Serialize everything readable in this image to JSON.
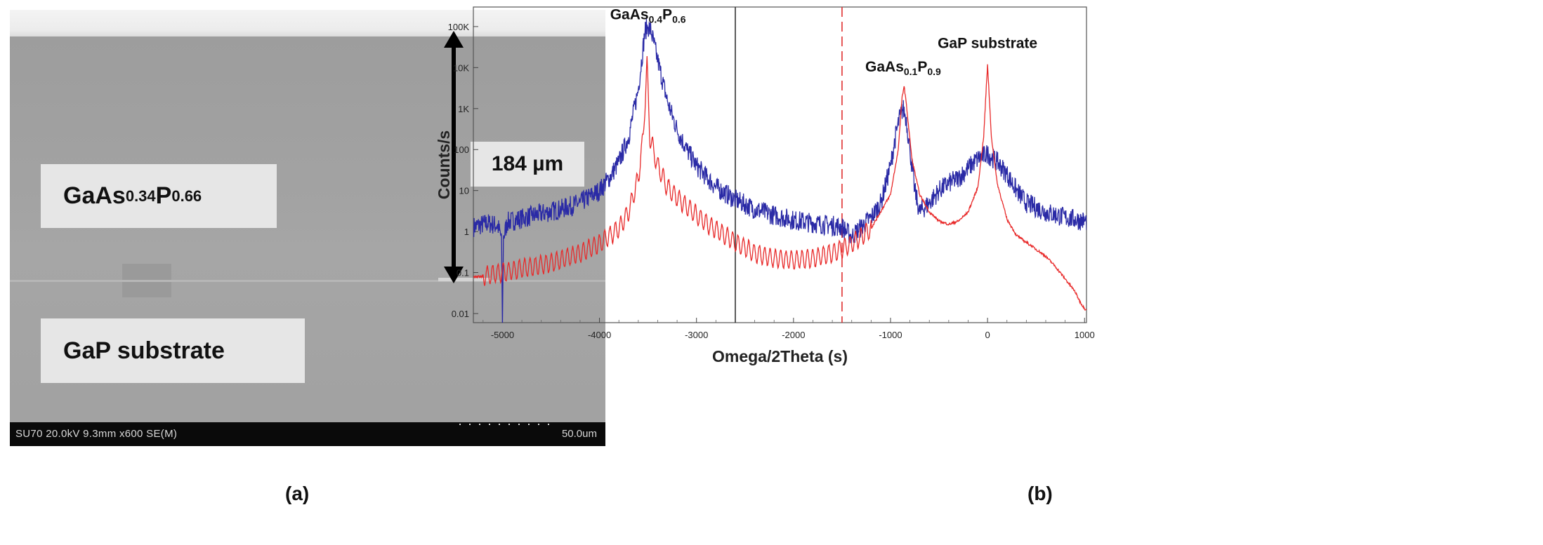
{
  "panel_a": {
    "layer_label": {
      "base": "GaAs",
      "sub1": "0.34",
      "mid": "P",
      "sub2": "0.66"
    },
    "substrate_label": "GaP substrate",
    "thickness_label": "184 µm",
    "sem_info": "SU70 20.0kV 9.3mm x600 SE(M)",
    "sem_scale": "50.0um",
    "caption": "(a)"
  },
  "panel_b": {
    "caption": "(b)"
  },
  "chart_data": {
    "type": "line",
    "xlabel": "Omega/2Theta (s)",
    "ylabel": "Counts/s",
    "xlim": [
      -5300,
      1020
    ],
    "ylim": [
      0.006,
      300000
    ],
    "y_scale": "log",
    "grid": false,
    "x_ticks": [
      -5000,
      -4000,
      -3000,
      -2000,
      -1000,
      0,
      1000
    ],
    "x_tick_labels": [
      "-5000",
      "-4000",
      "-3000",
      "-2000",
      "-1000",
      "0",
      "1000"
    ],
    "y_ticks": [
      0.01,
      0.1,
      1,
      10,
      100,
      1000,
      10000,
      100000
    ],
    "y_tick_labels": [
      "0.01",
      "0.1",
      "1",
      "10",
      "100",
      "1K",
      "10K",
      "100K"
    ],
    "vertical_lines": [
      {
        "x": -2600,
        "style": "solid",
        "color": "#333333"
      },
      {
        "x": -1500,
        "style": "dashed",
        "color": "#e03030"
      }
    ],
    "annotations": [
      {
        "x": -3500,
        "y": 150000,
        "base": "GaAs",
        "sub1": "0.4",
        "mid": "P",
        "sub2": "0.6"
      },
      {
        "x": -870,
        "y": 8000,
        "base": "GaAs",
        "sub1": "0.1",
        "mid": "P",
        "sub2": "0.9"
      },
      {
        "x": 0,
        "y": 30000,
        "text": "GaP substrate"
      }
    ],
    "series": [
      {
        "color": "#2a2aa6",
        "noise": 0.5,
        "points": [
          [
            -5300,
            1.3
          ],
          [
            -5150,
            1.6
          ],
          [
            -5050,
            1.4
          ],
          [
            -5010,
            0.7
          ],
          [
            -5000,
            0.005
          ],
          [
            -4990,
            0.7
          ],
          [
            -4950,
            1.7
          ],
          [
            -4700,
            2.4
          ],
          [
            -4400,
            3.5
          ],
          [
            -4200,
            5
          ],
          [
            -4000,
            10
          ],
          [
            -3900,
            20
          ],
          [
            -3800,
            50
          ],
          [
            -3700,
            200
          ],
          [
            -3600,
            3000
          ],
          [
            -3530,
            80000
          ],
          [
            -3500,
            100000
          ],
          [
            -3470,
            80000
          ],
          [
            -3400,
            15000
          ],
          [
            -3300,
            1500
          ],
          [
            -3200,
            300
          ],
          [
            -3100,
            100
          ],
          [
            -3000,
            40
          ],
          [
            -2800,
            12
          ],
          [
            -2600,
            6
          ],
          [
            -2400,
            3.5
          ],
          [
            -2200,
            2.5
          ],
          [
            -2000,
            1.9
          ],
          [
            -1700,
            1.5
          ],
          [
            -1500,
            1.3
          ],
          [
            -1400,
            0.75
          ],
          [
            -1300,
            1.3
          ],
          [
            -1200,
            2.2
          ],
          [
            -1100,
            5
          ],
          [
            -1000,
            40
          ],
          [
            -950,
            200
          ],
          [
            -900,
            700
          ],
          [
            -870,
            1000
          ],
          [
            -840,
            600
          ],
          [
            -800,
            100
          ],
          [
            -750,
            10
          ],
          [
            -700,
            3
          ],
          [
            -600,
            5
          ],
          [
            -500,
            10
          ],
          [
            -400,
            15
          ],
          [
            -300,
            20
          ],
          [
            -200,
            35
          ],
          [
            -100,
            60
          ],
          [
            0,
            80
          ],
          [
            100,
            50
          ],
          [
            200,
            25
          ],
          [
            300,
            10
          ],
          [
            400,
            5
          ],
          [
            600,
            3
          ],
          [
            800,
            2.2
          ],
          [
            1000,
            1.8
          ]
        ]
      },
      {
        "color": "#e82a2a",
        "noise": 0.06,
        "oscillation": {
          "period": 55,
          "amplitude": 0.22,
          "xmin": -5200,
          "xmax": -1200
        },
        "points": [
          [
            -5300,
            0.075
          ],
          [
            -5000,
            0.1
          ],
          [
            -4500,
            0.17
          ],
          [
            -4200,
            0.3
          ],
          [
            -4000,
            0.5
          ],
          [
            -3800,
            1.2
          ],
          [
            -3700,
            3
          ],
          [
            -3600,
            20
          ],
          [
            -3550,
            200
          ],
          [
            -3510,
            12000
          ],
          [
            -3480,
            200
          ],
          [
            -3400,
            40
          ],
          [
            -3300,
            12
          ],
          [
            -3100,
            4
          ],
          [
            -2900,
            1.6
          ],
          [
            -2700,
            0.8
          ],
          [
            -2600,
            0.55
          ],
          [
            -2400,
            0.3
          ],
          [
            -2200,
            0.22
          ],
          [
            -2000,
            0.2
          ],
          [
            -1800,
            0.22
          ],
          [
            -1600,
            0.3
          ],
          [
            -1400,
            0.5
          ],
          [
            -1200,
            1.2
          ],
          [
            -1000,
            8
          ],
          [
            -920,
            100
          ],
          [
            -880,
            2000
          ],
          [
            -860,
            3500
          ],
          [
            -840,
            1500
          ],
          [
            -780,
            60
          ],
          [
            -700,
            8
          ],
          [
            -600,
            3
          ],
          [
            -500,
            1.8
          ],
          [
            -400,
            1.5
          ],
          [
            -300,
            1.8
          ],
          [
            -200,
            3
          ],
          [
            -100,
            12
          ],
          [
            -40,
            200
          ],
          [
            0,
            12000
          ],
          [
            40,
            200
          ],
          [
            100,
            15
          ],
          [
            200,
            2
          ],
          [
            300,
            0.8
          ],
          [
            450,
            0.45
          ],
          [
            600,
            0.25
          ],
          [
            700,
            0.14
          ],
          [
            800,
            0.07
          ],
          [
            900,
            0.035
          ],
          [
            950,
            0.02
          ],
          [
            1000,
            0.013
          ]
        ]
      }
    ]
  }
}
